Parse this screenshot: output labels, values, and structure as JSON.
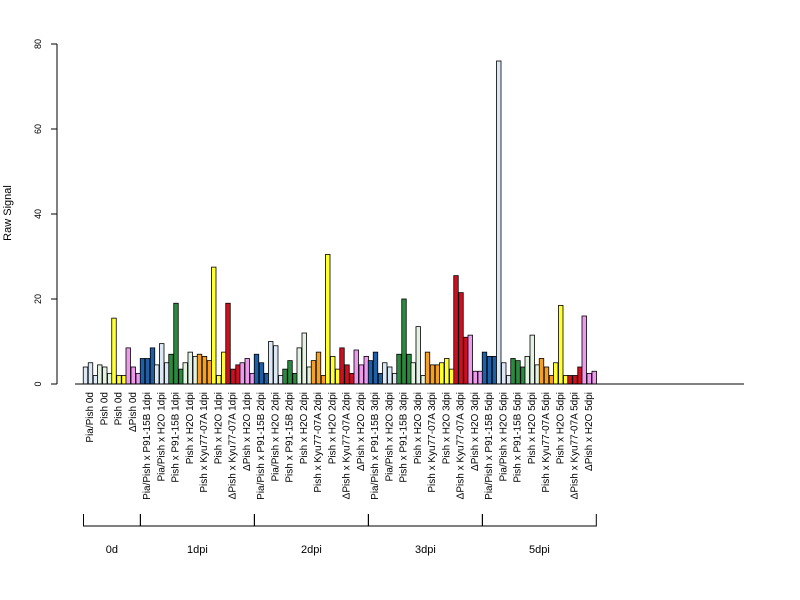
{
  "chart_data": {
    "type": "bar",
    "ylabel": "Raw Signal",
    "ylim": [
      0,
      80
    ],
    "yticks": [
      0,
      20,
      40,
      60,
      80
    ],
    "grid": false,
    "colors": {
      "lightblue": "#dce8f5",
      "lightgreen": "#e4f2e4",
      "yellow": "#ffff33",
      "pink": "#ee99ee",
      "blue": "#1f5fa8",
      "green": "#2a8a3e",
      "orange": "#f5a020",
      "red": "#cc1020"
    },
    "categories": [
      {
        "label": "Pia/Pish 0d",
        "color": "lightblue",
        "values": [
          4.0,
          5.0,
          2.0
        ]
      },
      {
        "label": "Pish 0d",
        "color": "lightgreen",
        "values": [
          4.5,
          4.0,
          2.5
        ]
      },
      {
        "label": "Pish 0d",
        "color": "yellow",
        "values": [
          15.5,
          2.0,
          2.0
        ]
      },
      {
        "label": "ΔPish 0d",
        "color": "pink",
        "values": [
          8.5,
          4.0,
          2.5
        ]
      },
      {
        "label": "Pia/Pish x P91-15B 1dpi",
        "color": "blue",
        "values": [
          6.0,
          6.0,
          8.5
        ]
      },
      {
        "label": "Pia/Pish x H2O 1dpi",
        "color": "lightblue",
        "values": [
          4.5,
          9.5,
          5.0
        ]
      },
      {
        "label": "Pish x P91-15B 1dpi",
        "color": "green",
        "values": [
          7.0,
          19.0,
          3.5
        ]
      },
      {
        "label": "Pish x H2O 1dpi",
        "color": "lightgreen",
        "values": [
          5.0,
          7.5,
          6.5
        ]
      },
      {
        "label": "Pish x Kyu77-07A 1dpi",
        "color": "orange",
        "values": [
          7.0,
          6.5,
          5.5
        ]
      },
      {
        "label": "Pish x H2O 1dpi",
        "color": "yellow",
        "values": [
          27.5,
          2.0,
          7.5
        ]
      },
      {
        "label": "ΔPish x Kyu77-07A 1dpi",
        "color": "red",
        "values": [
          19.0,
          3.5,
          4.5
        ]
      },
      {
        "label": "ΔPish x H2O 1dpi",
        "color": "pink",
        "values": [
          5.0,
          6.0,
          2.5
        ]
      },
      {
        "label": "Pia/Pish x P91-15B 2dpi",
        "color": "blue",
        "values": [
          7.0,
          5.0,
          2.5
        ]
      },
      {
        "label": "Pia/Pish x H2O 2dpi",
        "color": "lightblue",
        "values": [
          10.0,
          9.0,
          2.0
        ]
      },
      {
        "label": "Pish x P91-15B 2dpi",
        "color": "green",
        "values": [
          3.5,
          5.5,
          2.5
        ]
      },
      {
        "label": "Pish x H2O 2dpi",
        "color": "lightgreen",
        "values": [
          8.5,
          12.0,
          4.0
        ]
      },
      {
        "label": "Pish x Kyu77-07A 2dpi",
        "color": "orange",
        "values": [
          5.5,
          7.5,
          2.0
        ]
      },
      {
        "label": "Pish x H2O 2dpi",
        "color": "yellow",
        "values": [
          30.5,
          6.5,
          3.5
        ]
      },
      {
        "label": "ΔPish x Kyu77-07A 2dpi",
        "color": "red",
        "values": [
          8.5,
          4.5,
          2.5
        ]
      },
      {
        "label": "ΔPish x H2O 2dpi",
        "color": "pink",
        "values": [
          8.0,
          4.5,
          6.5
        ]
      },
      {
        "label": "Pia/Pish x P91-15B 3dpi",
        "color": "blue",
        "values": [
          5.5,
          7.5,
          2.5
        ]
      },
      {
        "label": "Pia/Pish x H2O 3dpi",
        "color": "lightblue",
        "values": [
          5.0,
          4.0,
          2.5
        ]
      },
      {
        "label": "Pish x P91-15B 3dpi",
        "color": "green",
        "values": [
          7.0,
          20.0,
          7.0
        ]
      },
      {
        "label": "Pish x H2O 3dpi",
        "color": "lightgreen",
        "values": [
          5.0,
          13.5,
          2.0
        ]
      },
      {
        "label": "Pish x Kyu77-07A 3dpi",
        "color": "orange",
        "values": [
          7.5,
          4.5,
          4.5
        ]
      },
      {
        "label": "Pish x H2O 3dpi",
        "color": "yellow",
        "values": [
          5.0,
          6.0,
          3.5
        ]
      },
      {
        "label": "ΔPish x Kyu77-07A 3dpi",
        "color": "red",
        "values": [
          25.5,
          21.5,
          11.0
        ]
      },
      {
        "label": "ΔPish x H2O 3dpi",
        "color": "pink",
        "values": [
          11.5,
          3.0,
          3.0
        ]
      },
      {
        "label": "Pia/Pish x P91-15B 5dpi",
        "color": "blue",
        "values": [
          7.5,
          6.5,
          6.5
        ]
      },
      {
        "label": "Pia/Pish x H2O 5dpi",
        "color": "lightblue",
        "values": [
          76.0,
          5.0,
          2.0
        ]
      },
      {
        "label": "Pish x P91-15B 5dpi",
        "color": "green",
        "values": [
          6.0,
          5.5,
          4.0
        ]
      },
      {
        "label": "Pish x H2O 5dpi",
        "color": "lightgreen",
        "values": [
          6.5,
          11.5,
          4.5
        ]
      },
      {
        "label": "Pish x Kyu77-07A 5dpi",
        "color": "orange",
        "values": [
          6.0,
          4.0,
          2.0
        ]
      },
      {
        "label": "Pish x H2O 5dpi",
        "color": "yellow",
        "values": [
          5.0,
          18.5,
          2.0
        ]
      },
      {
        "label": "ΔPish x Kyu77-07A 5dpi",
        "color": "red",
        "values": [
          2.0,
          2.0,
          4.0
        ]
      },
      {
        "label": "ΔPish x H2O 5dpi",
        "color": "pink",
        "values": [
          16.0,
          2.5,
          3.0
        ]
      }
    ],
    "groups": [
      {
        "label": "0d",
        "first": 0,
        "last": 3
      },
      {
        "label": "1dpi",
        "first": 4,
        "last": 11
      },
      {
        "label": "2dpi",
        "first": 12,
        "last": 19
      },
      {
        "label": "3dpi",
        "first": 20,
        "last": 27
      },
      {
        "label": "5dpi",
        "first": 28,
        "last": 35
      }
    ]
  }
}
